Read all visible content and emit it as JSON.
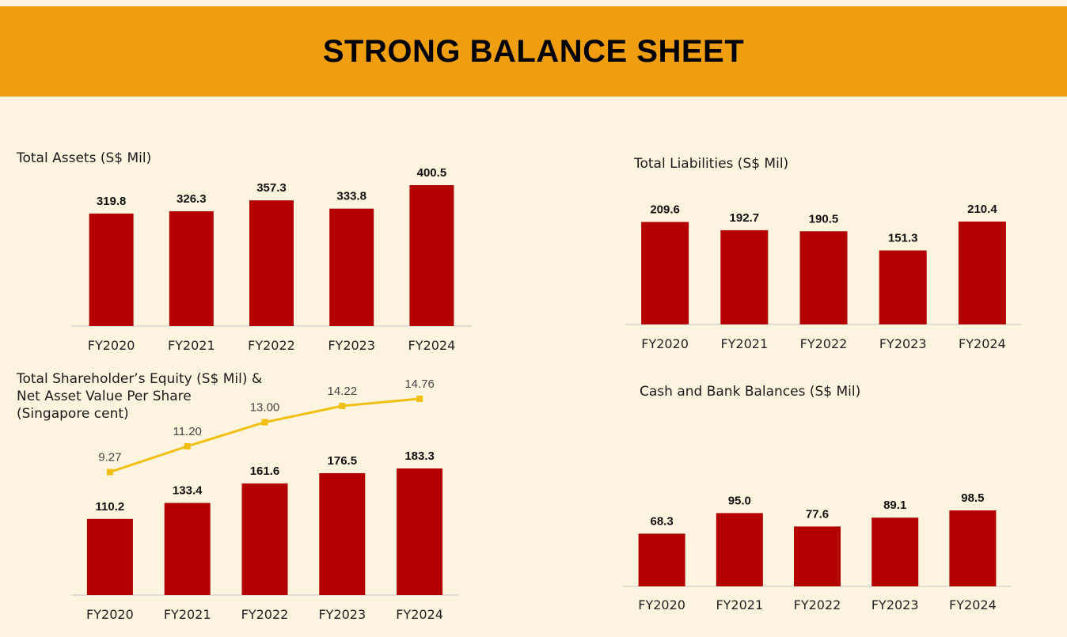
{
  "banner": {
    "title": "STRONG BALANCE SHEET"
  },
  "colors": {
    "banner": "#ee9e0e",
    "background": "#fdf4df",
    "bar": "#b30000",
    "nav_line": "#f1bf12"
  },
  "chart_data": [
    {
      "id": "total-assets",
      "type": "bar",
      "title_lines": [
        "Total Assets (S$ Mil)"
      ],
      "categories": [
        "FY2020",
        "FY2021",
        "FY2022",
        "FY2023",
        "FY2024"
      ],
      "values": [
        319.8,
        326.3,
        357.3,
        333.8,
        400.5
      ],
      "value_labels": [
        "319.8",
        "326.3",
        "357.3",
        "333.8",
        "400.5"
      ],
      "ylim": [
        0,
        430
      ]
    },
    {
      "id": "total-liabilities",
      "type": "bar",
      "title_lines": [
        "Total Liabilities  (S$ Mil)"
      ],
      "categories": [
        "FY2020",
        "FY2021",
        "FY2022",
        "FY2023",
        "FY2024"
      ],
      "values": [
        209.6,
        192.7,
        190.5,
        151.3,
        210.4
      ],
      "value_labels": [
        "209.6",
        "192.7",
        "190.5",
        "151.3",
        "210.4"
      ],
      "ylim": [
        0,
        250
      ]
    },
    {
      "id": "shareholder-equity",
      "type": "bar",
      "title_lines": [
        "Total Shareholder’s Equity (S$ Mil) &",
        "Net Asset Value Per Share",
        "(Singapore cent)"
      ],
      "categories": [
        "FY2020",
        "FY2021",
        "FY2022",
        "FY2023",
        "FY2024"
      ],
      "values": [
        110.2,
        133.4,
        161.6,
        176.5,
        183.3
      ],
      "value_labels": [
        "110.2",
        "133.4",
        "161.6",
        "176.5",
        "183.3"
      ],
      "ylim": [
        0,
        200
      ],
      "line_series": {
        "type": "line",
        "values": [
          9.27,
          11.2,
          13.0,
          14.22,
          14.76
        ],
        "value_labels": [
          "9.27",
          "11.20",
          "13.00",
          "14.22",
          "14.76"
        ],
        "ylim": [
          0,
          16
        ]
      }
    },
    {
      "id": "cash-bank",
      "type": "bar",
      "title_lines": [
        "Cash and Bank Balances (S$ Mil)"
      ],
      "categories": [
        "FY2020",
        "FY2021",
        "FY2022",
        "FY2023",
        "FY2024"
      ],
      "values": [
        68.3,
        95.0,
        77.6,
        89.1,
        98.5
      ],
      "value_labels": [
        "68.3",
        "95.0",
        "77.6",
        "89.1",
        "98.5"
      ],
      "ylim": [
        0,
        100
      ]
    }
  ]
}
